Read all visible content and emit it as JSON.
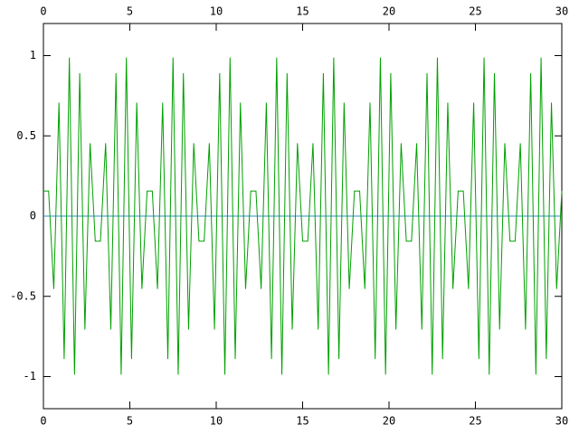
{
  "chart_data": {
    "type": "line",
    "x": [
      0,
      0.3,
      0.6,
      0.9,
      1.2,
      1.5,
      1.8,
      2.1,
      2.4,
      2.7,
      3,
      3.3,
      3.6,
      3.9,
      4.2,
      4.5,
      4.8,
      5.1,
      5.4,
      5.7,
      6,
      6.3,
      6.6,
      6.9,
      7.2,
      7.5,
      7.8,
      8.1,
      8.4,
      8.7,
      9,
      9.3,
      9.6,
      9.9,
      10.2,
      10.5,
      10.8,
      11.1,
      11.4,
      11.7,
      12,
      12.3,
      12.6,
      12.9,
      13.2,
      13.5,
      13.8,
      14.1,
      14.4,
      14.7,
      15,
      15.3,
      15.6,
      15.9,
      16.2,
      16.5,
      16.8,
      17.1,
      17.4,
      17.7,
      18,
      18.3,
      18.6,
      18.9,
      19.2,
      19.5,
      19.8,
      20.1,
      20.4,
      20.7,
      21,
      21.3,
      21.6,
      21.9,
      22.2,
      22.5,
      22.8,
      23.1,
      23.4,
      23.7,
      24,
      24.3,
      24.6,
      24.9,
      25.2,
      25.5,
      25.8,
      26.1,
      26.4,
      26.7,
      27,
      27.3,
      27.6,
      27.9,
      28.2,
      28.5,
      28.8,
      29.1,
      29.4,
      29.7,
      30
    ],
    "values": [
      0.156,
      0.156,
      -0.454,
      0.707,
      -0.891,
      0.988,
      -0.988,
      0.891,
      -0.707,
      0.454,
      -0.156,
      -0.156,
      0.454,
      -0.707,
      0.891,
      -0.988,
      0.988,
      -0.891,
      0.707,
      -0.454,
      0.156,
      0.156,
      -0.454,
      0.707,
      -0.891,
      0.988,
      -0.988,
      0.891,
      -0.707,
      0.454,
      -0.156,
      -0.156,
      0.454,
      -0.707,
      0.891,
      -0.988,
      0.988,
      -0.891,
      0.707,
      -0.454,
      0.156,
      0.156,
      -0.454,
      0.707,
      -0.891,
      0.988,
      -0.988,
      0.891,
      -0.707,
      0.454,
      -0.156,
      -0.156,
      0.454,
      -0.707,
      0.891,
      -0.988,
      0.988,
      -0.891,
      0.707,
      -0.454,
      0.156,
      0.156,
      -0.454,
      0.707,
      -0.891,
      0.988,
      -0.988,
      0.891,
      -0.707,
      0.454,
      -0.156,
      -0.156,
      0.454,
      -0.707,
      0.891,
      -0.988,
      0.988,
      -0.891,
      0.707,
      -0.454,
      0.156,
      0.156,
      -0.454,
      0.707,
      -0.891,
      0.988,
      -0.988,
      0.891,
      -0.707,
      0.454,
      -0.156,
      -0.156,
      0.454,
      -0.707,
      0.891,
      -0.988,
      0.988,
      -0.891,
      0.707,
      -0.454,
      0.156
    ],
    "color": "#00a000",
    "xlim": [
      0,
      30
    ],
    "xticks": [
      0,
      5,
      10,
      15,
      20,
      25,
      30
    ],
    "ylim": [
      -1.2,
      1.2
    ],
    "yticks": [
      -1,
      -0.5,
      0,
      0.5,
      1
    ],
    "mirror_x_ticks": true,
    "zeroaxis": true,
    "zeroaxis_color": "#2e8fc8"
  }
}
